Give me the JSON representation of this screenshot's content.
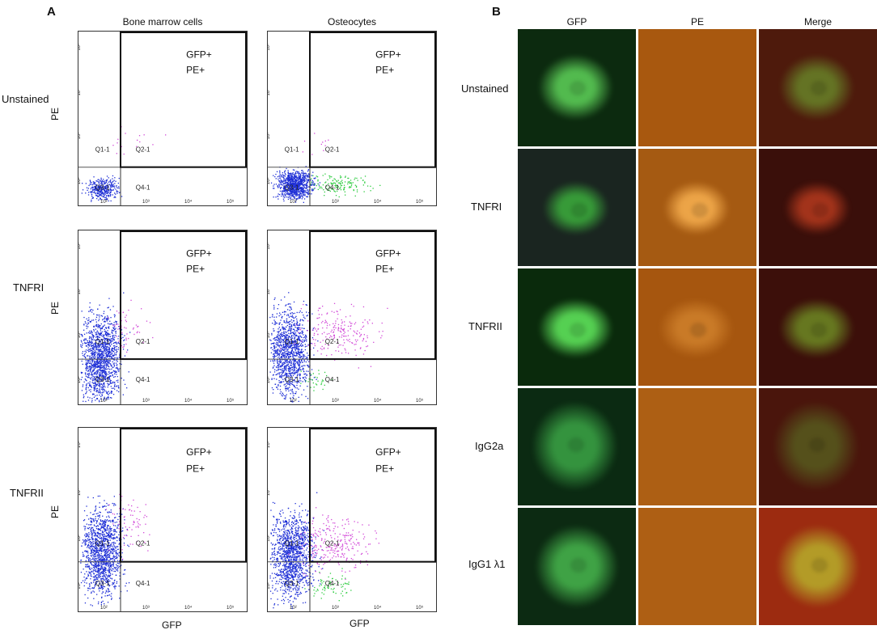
{
  "panel_a": {
    "letter": "A",
    "columns": [
      "Bone marrow cells",
      "Osteocytes"
    ],
    "rows": [
      "Unstained",
      "TNFRI",
      "TNFRII"
    ],
    "y_axis_label": "PE",
    "x_axis_label": "GFP",
    "gate_label_line1": "GFP+",
    "gate_label_line2": "PE+",
    "quadrants": [
      "Q1-1",
      "Q2-1",
      "Q3-1",
      "Q4-1"
    ],
    "tick_labels": [
      "10²",
      "10³",
      "10⁴",
      "10⁵"
    ]
  },
  "panel_b": {
    "letter": "B",
    "columns": [
      "GFP",
      "PE",
      "Merge"
    ],
    "rows": [
      "Unstained",
      "TNFRI",
      "TNFRII",
      "IgG2a",
      "IgG1 λ1"
    ]
  },
  "colors": {
    "dots_negative": "#1e2fd6",
    "dots_double_positive": "#d24ad8",
    "dots_gfp_positive": "#2ecc40",
    "gfp_background": "#0f2a12",
    "pe_background": "#a8580f",
    "merge_background": "#4a140c"
  }
}
